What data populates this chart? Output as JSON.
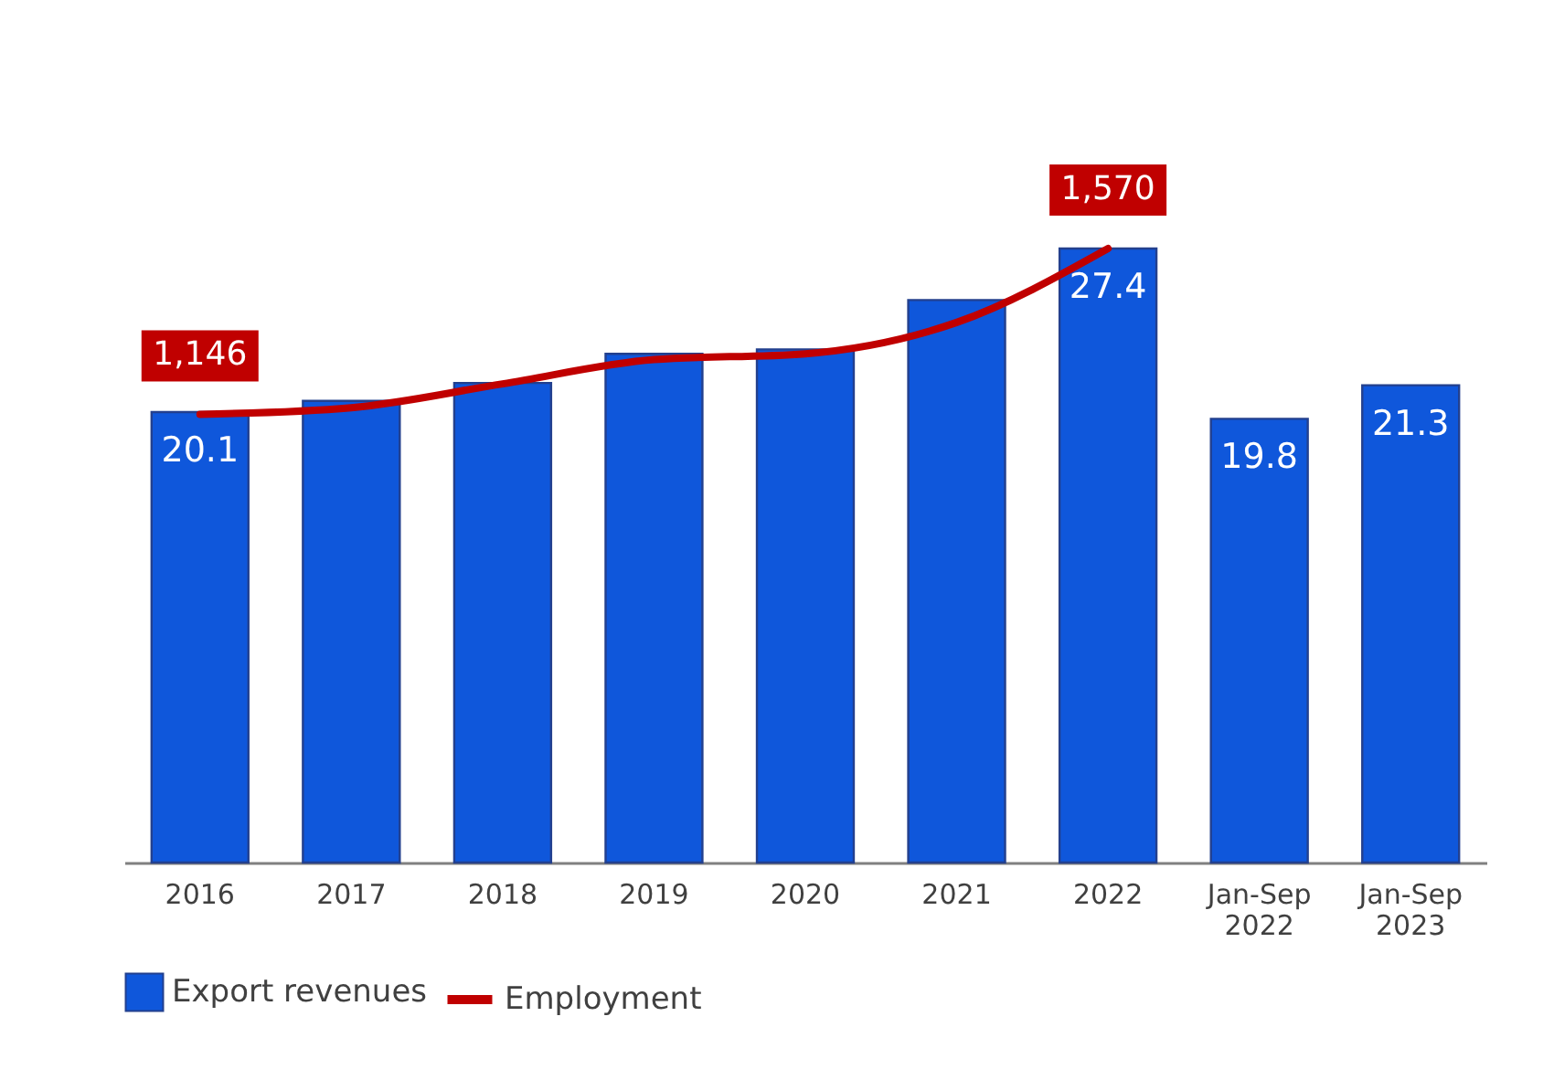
{
  "chart_data": {
    "type": "bar",
    "categories": [
      "2016",
      "2017",
      "2018",
      "2019",
      "2020",
      "2021",
      "2022",
      "Jan-Sep 2022",
      "Jan-Sep 2023"
    ],
    "series": [
      {
        "name": "Export revenues",
        "color": "#0f57db",
        "values": [
          20.1,
          20.6,
          21.4,
          22.7,
          22.9,
          25.1,
          27.4,
          19.8,
          21.3
        ],
        "value_labels": [
          "20.1",
          null,
          null,
          null,
          null,
          null,
          "27.4",
          "19.8",
          "21.3"
        ]
      },
      {
        "name": "Employment",
        "type": "line",
        "axis": "y2",
        "color": "#c00000",
        "values": [
          1146,
          1163,
          1224,
          1286,
          1301,
          1381,
          1570,
          null,
          null
        ],
        "value_labels": [
          "1,146",
          null,
          null,
          null,
          null,
          null,
          "1,570",
          null,
          null
        ]
      }
    ],
    "tick_labels": "x",
    "grid": false,
    "legend": "bottom",
    "marker": "none",
    "line_style": "solid"
  }
}
